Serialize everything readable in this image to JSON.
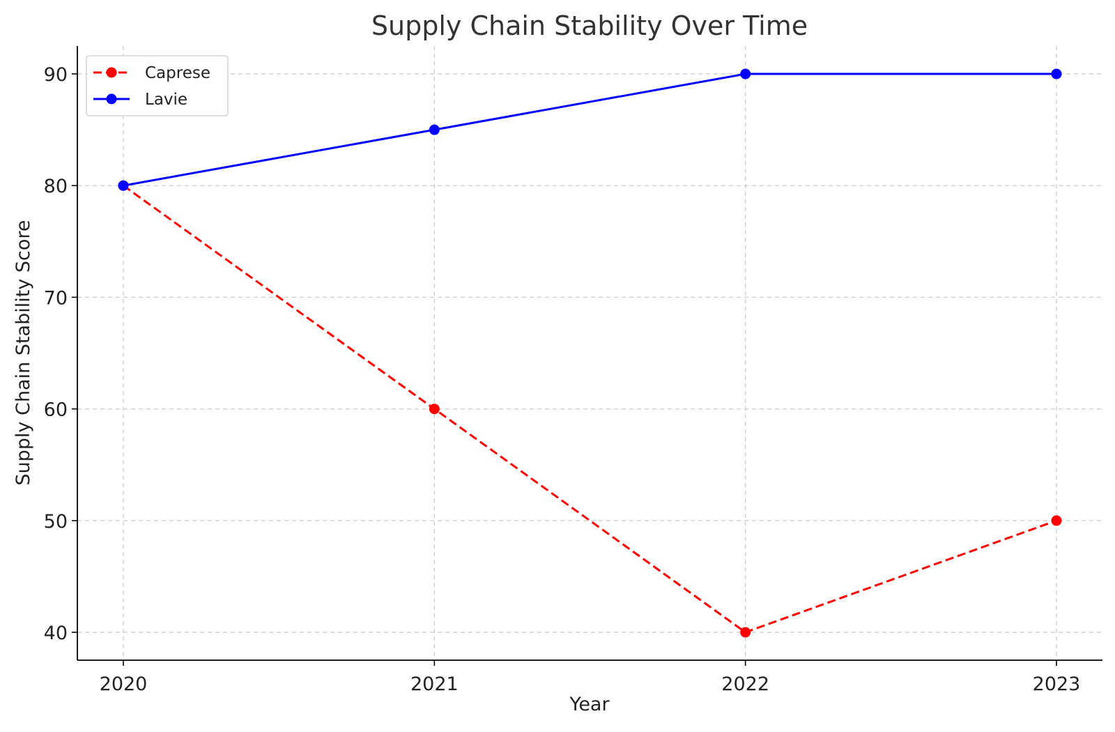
{
  "chart_data": {
    "type": "line",
    "title": "Supply Chain Stability Over Time",
    "xlabel": "Year",
    "ylabel": "Supply Chain Stability Score",
    "x": [
      "2020",
      "2021",
      "2022",
      "2023"
    ],
    "ylim": [
      37.5,
      92.5
    ],
    "yticks": [
      "40",
      "50",
      "60",
      "70",
      "80",
      "90"
    ],
    "grid": true,
    "legend_position": "top-left",
    "series": [
      {
        "name": "Caprese",
        "values": [
          80,
          60,
          40,
          50
        ],
        "color": "#ff0000",
        "line_style": "dashed",
        "marker": "circle"
      },
      {
        "name": "Lavie",
        "values": [
          80,
          85,
          90,
          90
        ],
        "color": "#0000ff",
        "line_style": "solid",
        "marker": "circle"
      }
    ]
  }
}
